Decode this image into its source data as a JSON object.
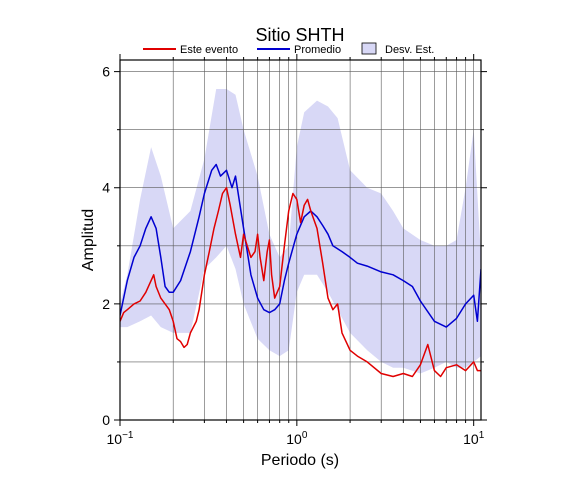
{
  "chart_data": {
    "type": "line",
    "title": "Sitio SHTH",
    "xlabel": "Periodo (s)",
    "ylabel": "Amplitud",
    "xscale": "log",
    "xlim": [
      0.1,
      11
    ],
    "ylim": [
      0,
      6.2
    ],
    "x_ticks": [
      {
        "value": 0.1,
        "base": "10",
        "exp": "−1"
      },
      {
        "value": 1,
        "base": "10",
        "exp": "0"
      },
      {
        "value": 10,
        "base": "10",
        "exp": "1"
      }
    ],
    "y_ticks": [
      0,
      2,
      4,
      6
    ],
    "y_minor_grid": [
      1,
      3,
      5
    ],
    "grid": true,
    "legend_position": "top",
    "legend": [
      {
        "label": "Este evento",
        "kind": "line",
        "color": "#e00000"
      },
      {
        "label": "Promedio",
        "kind": "line",
        "color": "#0000d0"
      },
      {
        "label": "Desv. Est.",
        "kind": "patch",
        "color": "#d8d8f6"
      }
    ],
    "band": {
      "name": "Desv. Est.",
      "color": "#d8d8f6",
      "x": [
        0.1,
        0.11,
        0.13,
        0.15,
        0.17,
        0.2,
        0.25,
        0.3,
        0.35,
        0.4,
        0.45,
        0.5,
        0.6,
        0.7,
        0.8,
        0.9,
        1.0,
        1.1,
        1.3,
        1.5,
        1.7,
        2.0,
        2.5,
        3.0,
        3.5,
        4.0,
        5.0,
        6.0,
        7.0,
        8.0,
        9.0,
        10.0,
        11.0
      ],
      "upper": [
        2.0,
        2.5,
        3.8,
        4.7,
        4.2,
        3.3,
        3.6,
        4.5,
        5.7,
        5.7,
        5.6,
        5.0,
        4.2,
        3.2,
        2.8,
        3.0,
        4.7,
        5.3,
        5.5,
        5.4,
        5.2,
        4.3,
        4.0,
        3.9,
        3.6,
        3.3,
        3.1,
        3.0,
        3.0,
        3.1,
        4.0,
        5.0,
        2.8
      ],
      "lower": [
        1.6,
        1.6,
        1.7,
        1.8,
        1.6,
        1.5,
        1.5,
        2.6,
        2.8,
        3.0,
        2.6,
        2.0,
        1.4,
        1.2,
        1.1,
        1.2,
        2.2,
        2.5,
        2.5,
        2.2,
        1.9,
        1.5,
        1.2,
        1.0,
        0.9,
        0.9,
        0.8,
        0.9,
        1.0,
        0.9,
        0.9,
        1.0,
        1.1
      ]
    },
    "series": [
      {
        "name": "Promedio",
        "color": "#0000d0",
        "x": [
          0.1,
          0.11,
          0.12,
          0.13,
          0.14,
          0.15,
          0.16,
          0.17,
          0.18,
          0.19,
          0.2,
          0.22,
          0.25,
          0.28,
          0.3,
          0.33,
          0.35,
          0.37,
          0.4,
          0.43,
          0.45,
          0.5,
          0.55,
          0.6,
          0.65,
          0.7,
          0.75,
          0.8,
          0.85,
          0.9,
          1.0,
          1.1,
          1.2,
          1.3,
          1.4,
          1.5,
          1.6,
          1.8,
          2.0,
          2.2,
          2.5,
          3.0,
          3.5,
          4.0,
          4.5,
          5.0,
          6.0,
          7.0,
          8.0,
          9.0,
          10.0,
          10.5,
          11.0
        ],
        "values": [
          1.8,
          2.4,
          2.8,
          3.0,
          3.3,
          3.5,
          3.3,
          2.8,
          2.3,
          2.2,
          2.2,
          2.4,
          2.9,
          3.5,
          3.9,
          4.3,
          4.4,
          4.2,
          4.3,
          4.0,
          4.2,
          3.3,
          2.5,
          2.1,
          1.9,
          1.85,
          1.9,
          2.0,
          2.4,
          2.7,
          3.2,
          3.5,
          3.6,
          3.5,
          3.35,
          3.2,
          3.0,
          2.9,
          2.8,
          2.7,
          2.65,
          2.55,
          2.5,
          2.4,
          2.3,
          2.05,
          1.7,
          1.6,
          1.75,
          2.0,
          2.15,
          1.7,
          2.6
        ]
      },
      {
        "name": "Este evento",
        "color": "#e00000",
        "x": [
          0.1,
          0.105,
          0.11,
          0.12,
          0.13,
          0.14,
          0.15,
          0.155,
          0.16,
          0.17,
          0.18,
          0.19,
          0.2,
          0.21,
          0.22,
          0.23,
          0.24,
          0.25,
          0.27,
          0.28,
          0.3,
          0.32,
          0.34,
          0.36,
          0.38,
          0.4,
          0.42,
          0.45,
          0.48,
          0.5,
          0.55,
          0.58,
          0.6,
          0.62,
          0.65,
          0.68,
          0.7,
          0.72,
          0.75,
          0.8,
          0.85,
          0.9,
          0.95,
          1.0,
          1.05,
          1.1,
          1.15,
          1.2,
          1.3,
          1.4,
          1.5,
          1.6,
          1.7,
          1.8,
          2.0,
          2.2,
          2.5,
          3.0,
          3.5,
          4.0,
          4.5,
          5.0,
          5.5,
          6.0,
          6.5,
          7.0,
          8.0,
          9.0,
          10.0,
          10.5,
          11.0
        ],
        "values": [
          1.7,
          1.85,
          1.9,
          2.0,
          2.05,
          2.2,
          2.4,
          2.5,
          2.3,
          2.1,
          2.0,
          1.9,
          1.7,
          1.4,
          1.35,
          1.25,
          1.3,
          1.5,
          1.7,
          1.9,
          2.5,
          2.9,
          3.3,
          3.6,
          3.9,
          4.0,
          3.7,
          3.2,
          2.8,
          3.2,
          2.8,
          2.9,
          3.2,
          2.8,
          2.4,
          2.9,
          3.1,
          2.5,
          2.1,
          2.3,
          3.0,
          3.6,
          3.9,
          3.8,
          3.4,
          3.7,
          3.8,
          3.6,
          3.3,
          2.7,
          2.1,
          1.9,
          2.0,
          1.5,
          1.2,
          1.1,
          1.0,
          0.8,
          0.75,
          0.8,
          0.75,
          0.95,
          1.3,
          0.85,
          0.75,
          0.9,
          0.95,
          0.85,
          1.0,
          0.85,
          0.85
        ]
      }
    ]
  }
}
